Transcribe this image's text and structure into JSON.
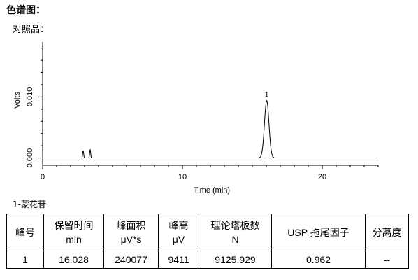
{
  "page": {
    "heading": "色谱图：",
    "subheading": "对照品：",
    "compound_label": "1-蒙花苷"
  },
  "chart_data": {
    "type": "line",
    "xlabel": "Time (min)",
    "ylabel": "Volts",
    "xlim": [
      0,
      24
    ],
    "ylim": [
      -0.0012,
      0.019
    ],
    "x_ticks": [
      0,
      10,
      20
    ],
    "y_ticks": [
      0.0,
      0.01
    ],
    "y_tick_labels": [
      "0.000",
      "0.010"
    ],
    "baseline": 0.0,
    "noise_spikes": [
      {
        "x": 2.9,
        "y": 0.0012
      },
      {
        "x": 3.4,
        "y": 0.0014
      }
    ],
    "peaks": [
      {
        "label": "1",
        "retention_time": 16.028,
        "height": 0.0094,
        "width_sigma": 0.16
      }
    ],
    "grid": false
  },
  "table": {
    "headers": [
      [
        "峰号"
      ],
      [
        "保留时间",
        "min"
      ],
      [
        "峰面积",
        "μV*s"
      ],
      [
        "峰高",
        "μV"
      ],
      [
        "理论塔板数",
        "N"
      ],
      [
        "USP 拖尾因子"
      ],
      [
        "分离度"
      ]
    ],
    "rows": [
      [
        "1",
        "16.028",
        "240077",
        "9411",
        "9125.929",
        "0.962",
        "--"
      ]
    ]
  }
}
